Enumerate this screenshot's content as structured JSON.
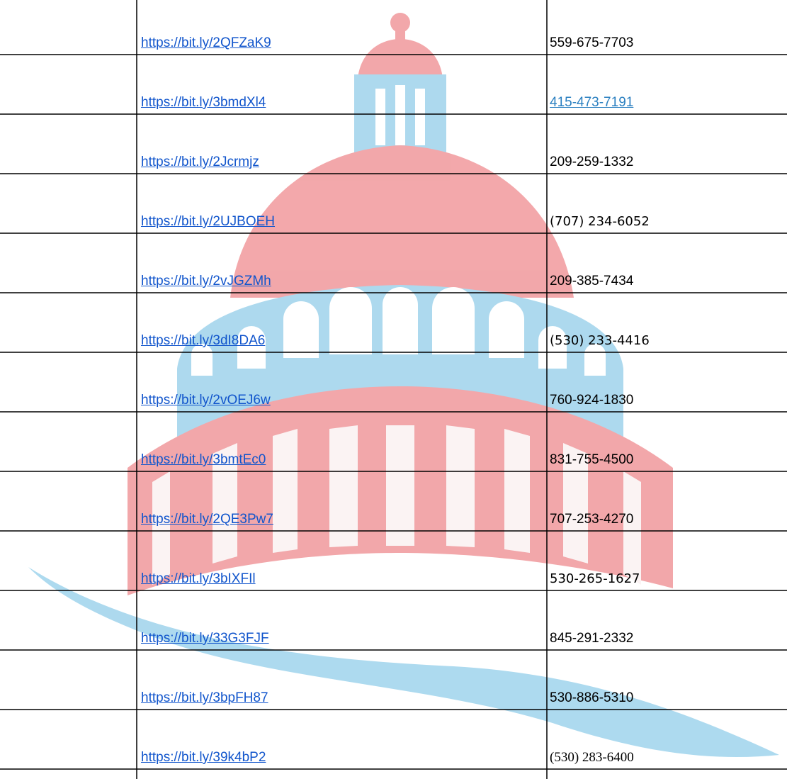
{
  "table": {
    "rows": [
      {
        "link": "https://bit.ly/2QFZaK9",
        "phone": "559-675-7703"
      },
      {
        "link": "https://bit.ly/3bmdXl4",
        "phone": "415-473-7191"
      },
      {
        "link": "https://bit.ly/2Jcrmjz",
        "phone": "209-259-1332"
      },
      {
        "link": "https://bit.ly/2UJBOEH",
        "phone": "(707) 234-6052"
      },
      {
        "link": "https://bit.ly/2vJGZMh",
        "phone": "209-385-7434"
      },
      {
        "link": "https://bit.ly/3dI8DA6",
        "phone": "(530) 233-4416"
      },
      {
        "link": "https://bit.ly/2vOEJ6w",
        "phone": "760-924-1830"
      },
      {
        "link": "https://bit.ly/3bmtEc0",
        "phone": "831-755-4500"
      },
      {
        "link": "https://bit.ly/2QE3Pw7",
        "phone": "707-253-4270"
      },
      {
        "link": "https://bit.ly/3bIXFIl",
        "phone": "530-265-1627"
      },
      {
        "link": "https://bit.ly/33G3FJF",
        "phone": "845-291-2332"
      },
      {
        "link": "https://bit.ly/3bpFH87",
        "phone": "530-886-5310"
      },
      {
        "link": "https://bit.ly/39k4bP2",
        "phone": "(530) 283-6400"
      }
    ]
  }
}
